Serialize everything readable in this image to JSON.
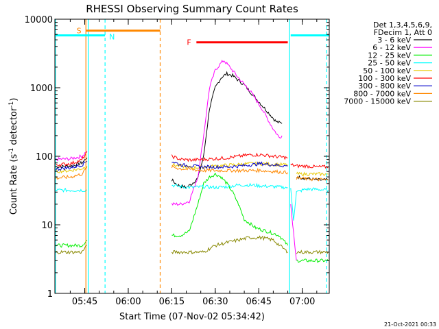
{
  "chart_data": {
    "type": "line",
    "title": "RHESSI Observing Summary Count Rates",
    "xlabel": "Start Time (07-Nov-02 05:34:42)",
    "ylabel_main": "Count Rate (s",
    "ylabel_sup": "-1",
    "ylabel_mid": " detector",
    "ylabel_end": ")",
    "yscale": "log",
    "ylim": [
      1,
      10000
    ],
    "xlim_minutes": [
      34.7,
      129.3
    ],
    "x_ticks": [
      {
        "t": 45,
        "label": "05:45"
      },
      {
        "t": 60,
        "label": "06:00"
      },
      {
        "t": 75,
        "label": "06:15"
      },
      {
        "t": 90,
        "label": "06:30"
      },
      {
        "t": 105,
        "label": "06:45"
      },
      {
        "t": 120,
        "label": "07:00"
      }
    ],
    "y_ticks": [
      {
        "v": 1,
        "label": "1"
      },
      {
        "v": 10,
        "label": "10"
      },
      {
        "v": 100,
        "label": "100"
      },
      {
        "v": 1000,
        "label": "1000"
      },
      {
        "v": 10000,
        "label": "10000"
      }
    ],
    "legend": {
      "header1": "Det 1,3,4,5,6,9,",
      "header2": "FDecim 1, Att 0",
      "placement": "right"
    },
    "series": [
      {
        "name": "3 - 6 keV",
        "color": "#000000",
        "seg1": [
          [
            35,
            70
          ],
          [
            40,
            72
          ],
          [
            44,
            80
          ],
          [
            45.8,
            95
          ]
        ],
        "seg2": [
          [
            75,
            45
          ],
          [
            77,
            38
          ],
          [
            80,
            35
          ],
          [
            82,
            40
          ],
          [
            84,
            48
          ],
          [
            86,
            100
          ],
          [
            88,
            500
          ],
          [
            90,
            1000
          ],
          [
            92,
            1400
          ],
          [
            94,
            1600
          ],
          [
            96,
            1500
          ],
          [
            100,
            1100
          ],
          [
            104,
            700
          ],
          [
            108,
            450
          ],
          [
            111,
            320
          ],
          [
            113,
            300
          ]
        ],
        "seg3": [
          [
            118,
            50
          ],
          [
            121,
            48
          ],
          [
            125,
            45
          ],
          [
            129,
            45
          ]
        ]
      },
      {
        "name": "6 - 12 keV",
        "color": "#ff00ff",
        "seg1": [
          [
            35,
            90
          ],
          [
            40,
            92
          ],
          [
            44,
            100
          ],
          [
            45.8,
            120
          ]
        ],
        "seg2": [
          [
            75,
            20
          ],
          [
            78,
            20
          ],
          [
            81,
            22
          ],
          [
            84,
            50
          ],
          [
            86,
            200
          ],
          [
            88,
            1000
          ],
          [
            90,
            1800
          ],
          [
            92,
            2300
          ],
          [
            93,
            2500
          ],
          [
            95,
            2000
          ],
          [
            98,
            1400
          ],
          [
            102,
            900
          ],
          [
            106,
            500
          ],
          [
            110,
            250
          ],
          [
            112,
            190
          ],
          [
            113,
            200
          ]
        ],
        "seg3": [
          [
            116,
            20
          ],
          [
            118,
            3
          ]
        ]
      },
      {
        "name": "12 - 25 keV",
        "color": "#00ee00",
        "seg1": [
          [
            35,
            5
          ],
          [
            40,
            5
          ],
          [
            44,
            5
          ],
          [
            45.8,
            6
          ]
        ],
        "seg2": [
          [
            75,
            7
          ],
          [
            78,
            7
          ],
          [
            81,
            8
          ],
          [
            84,
            20
          ],
          [
            86,
            40
          ],
          [
            88,
            50
          ],
          [
            90,
            55
          ],
          [
            92,
            50
          ],
          [
            94,
            40
          ],
          [
            96,
            30
          ],
          [
            98,
            20
          ],
          [
            100,
            12
          ],
          [
            104,
            9
          ],
          [
            108,
            8
          ],
          [
            112,
            7
          ],
          [
            115,
            5
          ]
        ],
        "seg3": [
          [
            118,
            3
          ],
          [
            121,
            3
          ],
          [
            125,
            3
          ],
          [
            129,
            3
          ]
        ]
      },
      {
        "name": "25 - 50 keV",
        "color": "#00ffff",
        "seg1": [
          [
            35,
            32
          ],
          [
            40,
            32
          ],
          [
            44,
            32
          ],
          [
            45.8,
            32
          ]
        ],
        "seg2": [
          [
            75,
            38
          ],
          [
            78,
            36
          ],
          [
            82,
            35
          ],
          [
            86,
            36
          ],
          [
            90,
            35
          ],
          [
            94,
            36
          ],
          [
            98,
            38
          ],
          [
            102,
            38
          ],
          [
            106,
            37
          ],
          [
            110,
            36
          ],
          [
            115,
            35
          ]
        ],
        "seg3": [
          [
            116,
            33
          ],
          [
            117,
            12
          ],
          [
            118,
            30
          ],
          [
            121,
            33
          ],
          [
            125,
            33
          ],
          [
            129,
            32
          ]
        ]
      },
      {
        "name": "50 - 100 keV",
        "color": "#e8c800",
        "seg1": [
          [
            35,
            60
          ],
          [
            40,
            62
          ],
          [
            44,
            66
          ],
          [
            45.8,
            72
          ]
        ],
        "seg2": [
          [
            75,
            75
          ],
          [
            78,
            72
          ],
          [
            82,
            68
          ],
          [
            86,
            70
          ],
          [
            90,
            72
          ],
          [
            94,
            74
          ],
          [
            98,
            76
          ],
          [
            102,
            78
          ],
          [
            106,
            78
          ],
          [
            110,
            76
          ],
          [
            115,
            75
          ]
        ],
        "seg3": [
          [
            118,
            55
          ],
          [
            121,
            55
          ],
          [
            125,
            55
          ],
          [
            129,
            55
          ]
        ]
      },
      {
        "name": "100 - 300 keV",
        "color": "#ff0000",
        "seg1": [
          [
            35,
            75
          ],
          [
            40,
            78
          ],
          [
            44,
            88
          ],
          [
            45.8,
            115
          ]
        ],
        "seg2": [
          [
            75,
            100
          ],
          [
            78,
            90
          ],
          [
            82,
            88
          ],
          [
            86,
            90
          ],
          [
            90,
            92
          ],
          [
            94,
            95
          ],
          [
            98,
            100
          ],
          [
            102,
            105
          ],
          [
            106,
            105
          ],
          [
            110,
            100
          ],
          [
            115,
            95
          ]
        ],
        "seg3": [
          [
            116,
            75
          ],
          [
            118,
            72
          ],
          [
            121,
            72
          ],
          [
            125,
            70
          ],
          [
            129,
            70
          ]
        ]
      },
      {
        "name": "300 - 800 keV",
        "color": "#0000cc",
        "seg1": [
          [
            35,
            65
          ],
          [
            40,
            68
          ],
          [
            44,
            75
          ],
          [
            45.8,
            85
          ]
        ],
        "seg2": [
          [
            75,
            85
          ],
          [
            78,
            75
          ],
          [
            82,
            72
          ],
          [
            86,
            70
          ],
          [
            90,
            70
          ],
          [
            94,
            70
          ],
          [
            98,
            72
          ],
          [
            102,
            75
          ],
          [
            106,
            78
          ],
          [
            110,
            75
          ],
          [
            115,
            72
          ]
        ]
      },
      {
        "name": "800 - 7000 keV",
        "color": "#ff8800",
        "seg1": [
          [
            35,
            48
          ],
          [
            40,
            50
          ],
          [
            44,
            55
          ],
          [
            45.8,
            68
          ]
        ],
        "seg2": [
          [
            75,
            70
          ],
          [
            78,
            66
          ],
          [
            82,
            64
          ],
          [
            86,
            62
          ],
          [
            90,
            62
          ],
          [
            94,
            62
          ],
          [
            98,
            62
          ],
          [
            102,
            62
          ],
          [
            106,
            62
          ],
          [
            110,
            60
          ],
          [
            115,
            58
          ]
        ],
        "seg3": [
          [
            118,
            48
          ],
          [
            121,
            47
          ],
          [
            125,
            46
          ],
          [
            129,
            45
          ]
        ]
      },
      {
        "name": "7000 - 15000 keV",
        "color": "#888800",
        "seg1": [
          [
            35,
            4
          ],
          [
            40,
            4
          ],
          [
            44,
            4
          ],
          [
            45.8,
            5
          ]
        ],
        "seg2": [
          [
            75,
            4
          ],
          [
            78,
            4
          ],
          [
            82,
            4
          ],
          [
            86,
            4
          ],
          [
            88,
            4.5
          ],
          [
            90,
            5
          ],
          [
            94,
            5.5
          ],
          [
            98,
            6
          ],
          [
            102,
            6.5
          ],
          [
            106,
            6.5
          ],
          [
            110,
            6
          ],
          [
            115,
            4
          ]
        ],
        "seg3": [
          [
            118,
            4
          ],
          [
            121,
            4
          ],
          [
            125,
            4
          ],
          [
            129,
            4
          ]
        ]
      }
    ],
    "flags": [
      {
        "letter": "S",
        "color": "#ff8800",
        "x_start": 45.5,
        "x_end": 71,
        "level": 6800
      },
      {
        "letter": "N",
        "color": "#00ffff",
        "x_start": 34.7,
        "x_end": 52,
        "level": 5800,
        "second_start": 116,
        "second_end": 129.3
      },
      {
        "letter": "F",
        "color": "#ff0000",
        "x_start": 83.5,
        "x_end": 115,
        "level": 4600
      }
    ],
    "saa_lines": [
      {
        "color": "#00ffff",
        "t": 34.9,
        "dashed": false
      },
      {
        "color": "#00ffff",
        "t": 46.2,
        "dashed": false
      },
      {
        "color": "#00ffff",
        "t": 52,
        "dashed": true
      },
      {
        "color": "#ff8800",
        "t": 45.4,
        "dashed": false
      },
      {
        "color": "#ff8800",
        "t": 71,
        "dashed": true
      },
      {
        "color": "#00ffff",
        "t": 115.6,
        "dashed": false
      },
      {
        "color": "#00ffff",
        "t": 128.4,
        "dashed": true
      }
    ],
    "timestamp": "21-Oct-2021 00:33"
  }
}
